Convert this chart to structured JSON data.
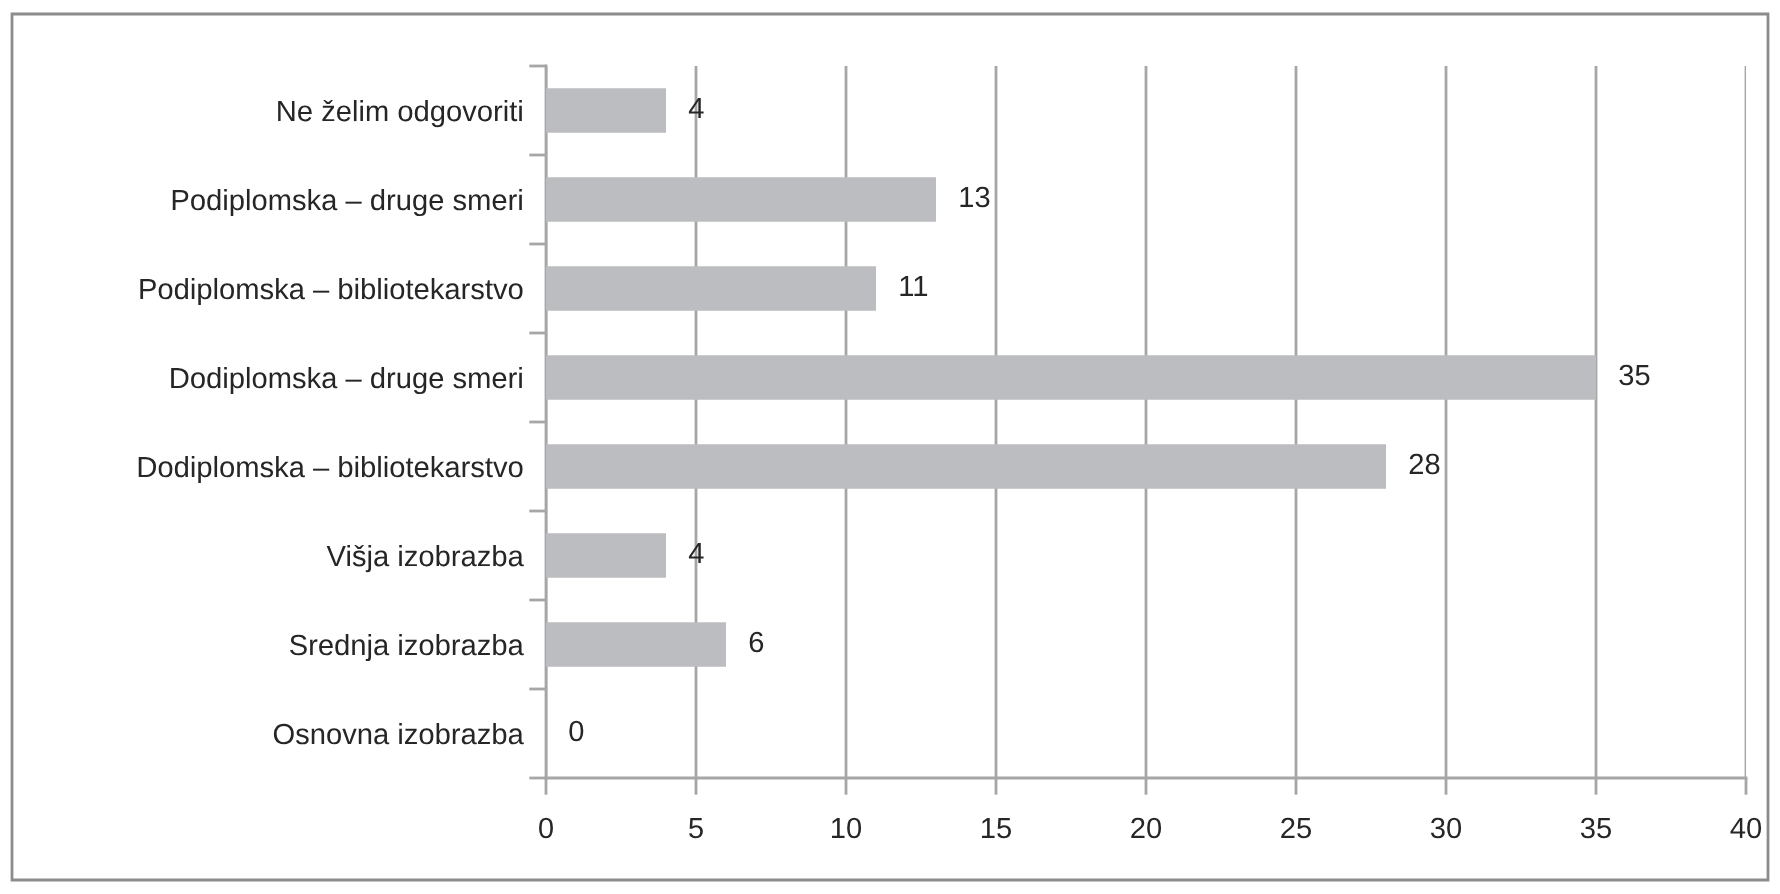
{
  "chart_data": {
    "type": "bar",
    "orientation": "horizontal",
    "categories": [
      "Ne želim odgovoriti",
      "Podiplomska – druge smeri",
      "Podiplomska – bibliotekarstvo",
      "Dodiplomska – druge smeri",
      "Dodiplomska – bibliotekarstvo",
      "Višja izobrazba",
      "Srednja izobrazba",
      "Osnovna izobrazba"
    ],
    "values": [
      4,
      13,
      11,
      35,
      28,
      4,
      6,
      0
    ],
    "color": "#bcbdc0",
    "xlim": [
      0,
      40
    ],
    "xticks": [
      0,
      5,
      10,
      15,
      20,
      25,
      30,
      35,
      40
    ],
    "grid": "x",
    "data_labels": true
  }
}
